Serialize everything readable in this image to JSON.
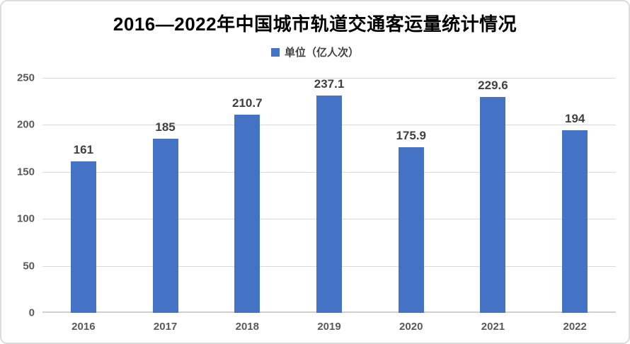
{
  "chart_data": {
    "type": "bar",
    "title": "2016—2022年中国城市轨道交通客运量统计情况",
    "legend": "单位（亿人次）",
    "legend_position": "top",
    "categories": [
      "2016",
      "2017",
      "2018",
      "2019",
      "2020",
      "2021",
      "2022"
    ],
    "values": [
      161,
      185,
      210.7,
      237.1,
      175.9,
      229.6,
      194
    ],
    "value_labels": [
      "161",
      "185",
      "210.7",
      "237.1",
      "175.9",
      "229.6",
      "194"
    ],
    "xlabel": "",
    "ylabel": "",
    "ylim": [
      0,
      250
    ],
    "yticks": [
      0,
      50,
      100,
      150,
      200,
      250
    ],
    "grid": true,
    "colors": {
      "bar": "#4472C4",
      "gridline": "#dadada",
      "axis_text": "#595959",
      "value_label_text": "#3f3f3f",
      "title_text": "#000000",
      "border": "#dcdcdc",
      "background": "#ffffff"
    }
  }
}
